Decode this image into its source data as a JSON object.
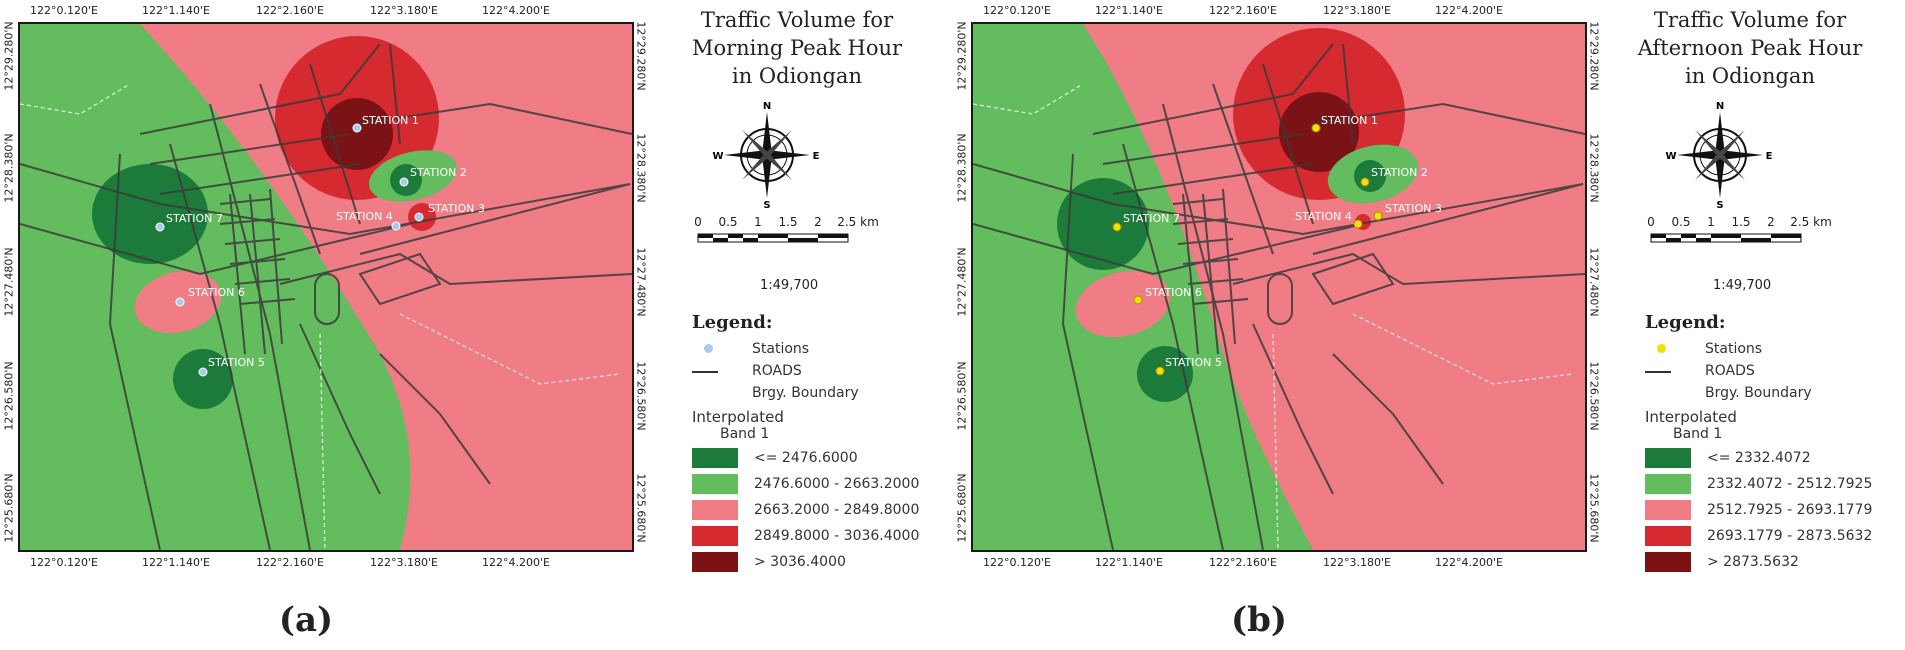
{
  "panels": [
    {
      "id": "a",
      "caption": "(a)",
      "title_lines": [
        "Traffic Volume for",
        "Morning Peak Hour",
        "in Odiongan"
      ],
      "scale": {
        "ticks": [
          "0",
          "0.5",
          "1",
          "1.5",
          "2",
          "2.5 km"
        ],
        "ratio": "1:49,700"
      },
      "legend_title": "Legend:",
      "legend_items": [
        {
          "label": "Stations",
          "symbol": "dot",
          "color": "#a9cbe8"
        },
        {
          "label": "ROADS",
          "symbol": "line"
        },
        {
          "label": "Brgy. Boundary",
          "symbol": "none"
        }
      ],
      "interp_title": "Interpolated",
      "band_label": "Band 1",
      "classes": [
        {
          "label": "<= 2476.6000",
          "color": "#1c7a3a"
        },
        {
          "label": "2476.6000 - 2663.2000",
          "color": "#63bd5e"
        },
        {
          "label": "2663.2000 - 2849.8000",
          "color": "#f07c86"
        },
        {
          "label": "2849.8000 - 3036.4000",
          "color": "#d42a30"
        },
        {
          "label": "> 3036.4000",
          "color": "#7a1216"
        }
      ],
      "station_color": "#a9cbe8",
      "stations": [
        "STATION 1",
        "STATION 2",
        "STATION 3",
        "STATION 4",
        "STATION 5",
        "STATION 6",
        "STATION 7"
      ]
    },
    {
      "id": "b",
      "caption": "(b)",
      "title_lines": [
        "Traffic Volume for",
        "Afternoon Peak Hour",
        "in Odiongan"
      ],
      "scale": {
        "ticks": [
          "0",
          "0.5",
          "1",
          "1.5",
          "2",
          "2.5 km"
        ],
        "ratio": "1:49,700"
      },
      "legend_title": "Legend:",
      "legend_items": [
        {
          "label": "Stations",
          "symbol": "dot",
          "color": "#f2e200"
        },
        {
          "label": "ROADS",
          "symbol": "line"
        },
        {
          "label": "Brgy. Boundary",
          "symbol": "none"
        }
      ],
      "interp_title": "Interpolated",
      "band_label": "Band 1",
      "classes": [
        {
          "label": "<= 2332.4072",
          "color": "#1c7a3a"
        },
        {
          "label": "2332.4072 - 2512.7925",
          "color": "#63bd5e"
        },
        {
          "label": "2512.7925 - 2693.1779",
          "color": "#f07c86"
        },
        {
          "label": "2693.1779 - 2873.5632",
          "color": "#d42a30"
        },
        {
          "label": "> 2873.5632",
          "color": "#7a1216"
        }
      ],
      "station_color": "#f2e200",
      "stations": [
        "STATION 1",
        "STATION 2",
        "STATION 3",
        "STATION 4",
        "STATION 5",
        "STATION 6",
        "STATION 7"
      ]
    }
  ],
  "lon_ticks": [
    "122°0.120'E",
    "122°1.140'E",
    "122°2.160'E",
    "122°3.180'E",
    "122°4.200'E"
  ],
  "lat_ticks": [
    "12°29.280'N",
    "12°28.380'N",
    "12°27.480'N",
    "12°26.580'N",
    "12°25.680'N"
  ]
}
